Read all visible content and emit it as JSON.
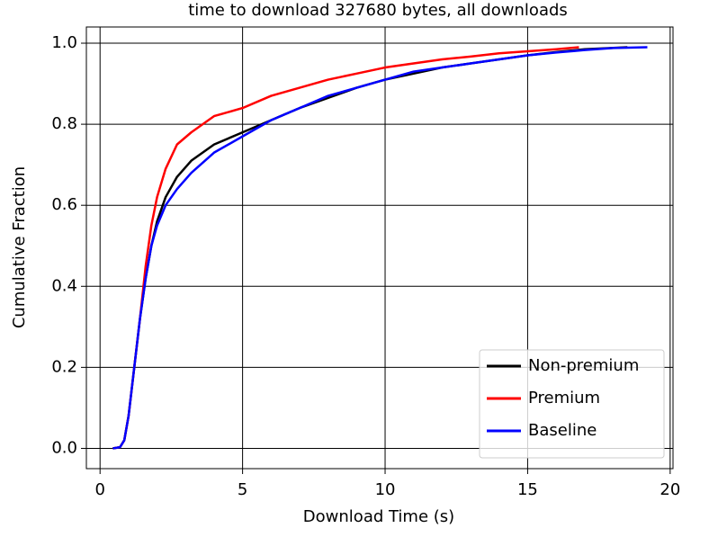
{
  "chart_data": {
    "type": "line",
    "title": "time to download 327680 bytes, all downloads",
    "xlabel": "Download Time (s)",
    "ylabel": "Cumulative Fraction",
    "xlim": [
      -0.48,
      20.1
    ],
    "ylim": [
      -0.05,
      1.04
    ],
    "xticks": [
      0,
      5,
      10,
      15,
      20
    ],
    "yticks": [
      {
        "value": 0,
        "label": "0.0"
      },
      {
        "value": 0.2,
        "label": "0.2"
      },
      {
        "value": 0.4,
        "label": "0.4"
      },
      {
        "value": 0.6,
        "label": "0.6"
      },
      {
        "value": 0.8,
        "label": "0.8"
      },
      {
        "value": 1,
        "label": "1.0"
      }
    ],
    "grid": true,
    "legend": "lower right",
    "series": [
      {
        "name": "Non-premium",
        "color": "#000000",
        "x": [
          0.45,
          0.7,
          0.85,
          1.0,
          1.2,
          1.4,
          1.6,
          1.8,
          2.0,
          2.3,
          2.7,
          3.2,
          4.0,
          5.0,
          6.0,
          7.0,
          8.0,
          9.0,
          10.0,
          11.0,
          12.0,
          13.0,
          14.0,
          15.0,
          16.0,
          17.0,
          18.5
        ],
        "values": [
          0,
          0.003,
          0.02,
          0.08,
          0.2,
          0.32,
          0.42,
          0.5,
          0.56,
          0.62,
          0.67,
          0.71,
          0.75,
          0.78,
          0.81,
          0.84,
          0.865,
          0.89,
          0.91,
          0.925,
          0.94,
          0.95,
          0.96,
          0.97,
          0.978,
          0.985,
          0.99
        ]
      },
      {
        "name": "Premium",
        "color": "#ff0000",
        "x": [
          0.45,
          0.7,
          0.85,
          1.0,
          1.2,
          1.4,
          1.6,
          1.8,
          2.0,
          2.3,
          2.7,
          3.2,
          4.0,
          5.0,
          6.0,
          7.0,
          8.0,
          9.0,
          10.0,
          11.0,
          12.0,
          13.0,
          14.0,
          15.0,
          16.0,
          16.8
        ],
        "values": [
          0,
          0.003,
          0.02,
          0.08,
          0.2,
          0.32,
          0.45,
          0.55,
          0.62,
          0.69,
          0.75,
          0.78,
          0.82,
          0.84,
          0.87,
          0.89,
          0.91,
          0.925,
          0.94,
          0.95,
          0.96,
          0.967,
          0.975,
          0.98,
          0.985,
          0.99
        ]
      },
      {
        "name": "Baseline",
        "color": "#0000ff",
        "x": [
          0.45,
          0.7,
          0.85,
          1.0,
          1.2,
          1.4,
          1.6,
          1.8,
          2.0,
          2.3,
          2.7,
          3.2,
          4.0,
          5.0,
          6.0,
          7.0,
          8.0,
          9.0,
          10.0,
          11.0,
          12.0,
          13.0,
          14.0,
          15.0,
          16.0,
          17.0,
          18.0,
          19.2
        ],
        "values": [
          0,
          0.003,
          0.02,
          0.08,
          0.2,
          0.32,
          0.42,
          0.5,
          0.55,
          0.6,
          0.64,
          0.68,
          0.73,
          0.77,
          0.81,
          0.84,
          0.87,
          0.89,
          0.91,
          0.93,
          0.94,
          0.95,
          0.96,
          0.97,
          0.977,
          0.983,
          0.988,
          0.99
        ]
      }
    ]
  }
}
